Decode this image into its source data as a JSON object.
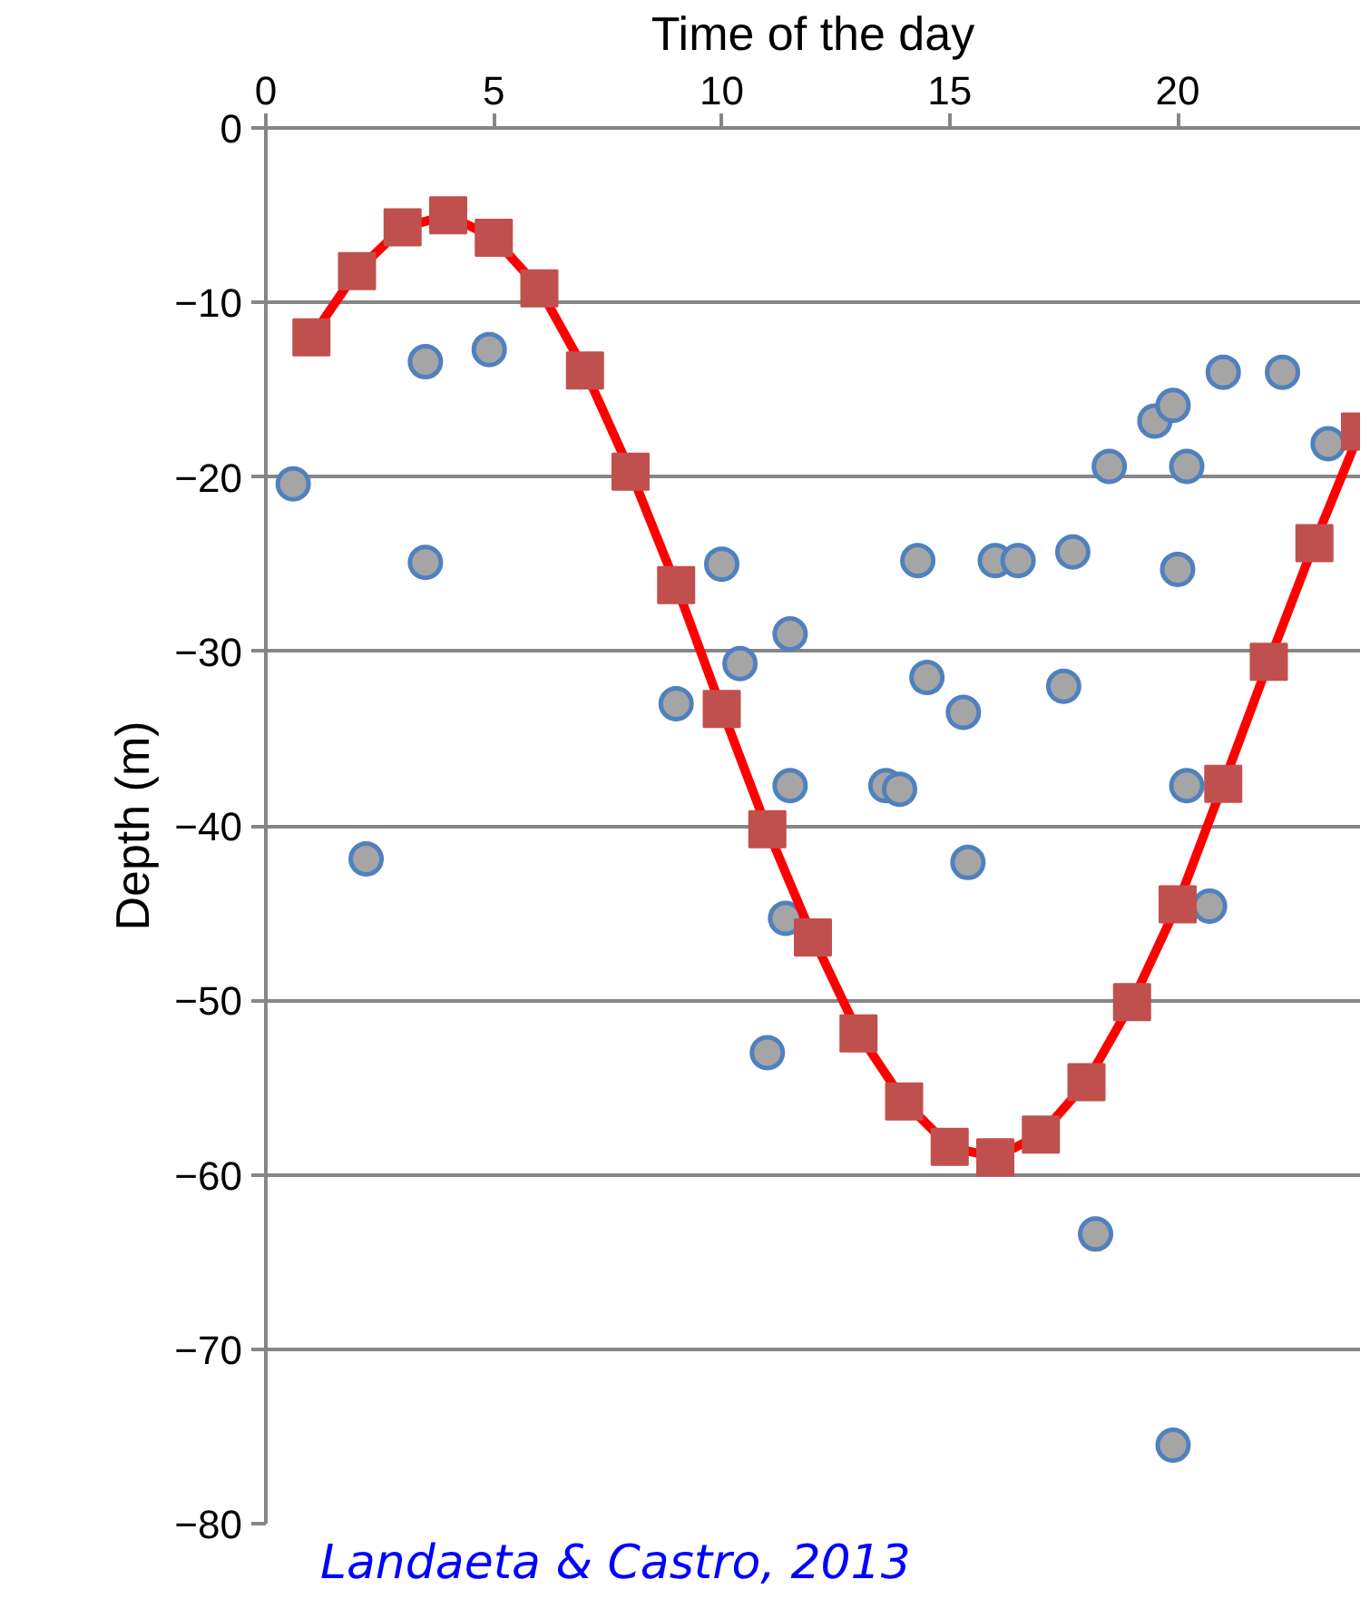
{
  "chart_data": {
    "type": "line",
    "xlabel": "Time of the day",
    "ylabel": "Depth (m)",
    "xlim": [
      0,
      24
    ],
    "ylim": [
      -80,
      0
    ],
    "xticks": [
      0,
      5,
      10,
      15,
      20
    ],
    "yticks": [
      0,
      -10,
      -20,
      -30,
      -40,
      -50,
      -60,
      -70,
      -80
    ],
    "grid": "y",
    "annotations": [
      "Landaeta & Castro, 2013"
    ],
    "series": [
      {
        "type": "scatter",
        "marker": "circle",
        "color": "#a5a5a5",
        "x": [
          0.6,
          2.2,
          3.5,
          3.5,
          4.9,
          9.0,
          10.0,
          10.4,
          11.5,
          11.5,
          11.0,
          11.4,
          14.3,
          14.5,
          15.3,
          13.6,
          13.9,
          15.4,
          16.0,
          16.5,
          17.7,
          17.5,
          18.5,
          19.5,
          19.9,
          20.2,
          20.0,
          20.2,
          20.7,
          21.0,
          22.3,
          23.3,
          18.2,
          19.9
        ],
        "values": [
          -20.4,
          -41.9,
          -13.4,
          -24.9,
          -12.7,
          -33.0,
          -25.0,
          -30.7,
          -29.0,
          -37.7,
          -53.0,
          -45.3,
          -24.8,
          -31.5,
          -33.5,
          -37.7,
          -37.9,
          -42.1,
          -24.8,
          -24.8,
          -24.3,
          -32.0,
          -19.4,
          -16.8,
          -15.9,
          -19.4,
          -25.3,
          -37.7,
          -44.6,
          -14.0,
          -14.0,
          -18.1,
          -63.4,
          -75.5
        ]
      },
      {
        "marker": "square",
        "color": "#ff0000",
        "x": [
          1,
          2,
          3,
          4,
          5,
          6,
          7,
          8,
          9,
          10,
          11,
          12,
          13,
          14,
          15,
          16,
          17,
          18,
          19,
          20,
          21,
          22,
          23,
          24
        ],
        "values": [
          -12.0,
          -8.2,
          -5.7,
          -5.0,
          -6.3,
          -9.2,
          -13.9,
          -19.7,
          -26.2,
          -33.3,
          -40.2,
          -46.4,
          -51.9,
          -55.8,
          -58.4,
          -59.0,
          -57.7,
          -54.7,
          -50.1,
          -44.5,
          -37.6,
          -30.6,
          -23.8,
          -17.4
        ]
      }
    ]
  }
}
